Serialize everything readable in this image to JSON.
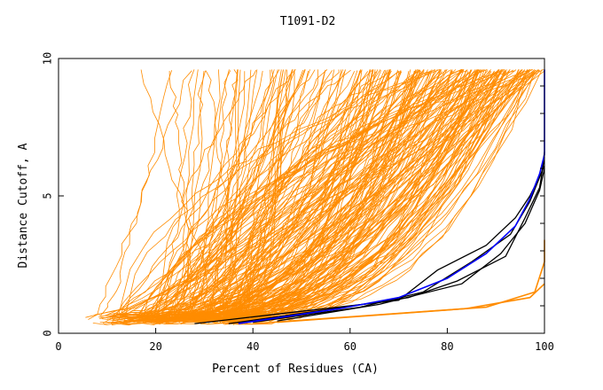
{
  "chart_data": {
    "type": "line",
    "title": "T1091-D2",
    "xlabel": "Percent of Residues (CA)",
    "ylabel": "Distance Cutoff, A",
    "xlim": [
      0,
      100
    ],
    "ylim": [
      0,
      10
    ],
    "x_ticks": [
      0,
      20,
      40,
      60,
      80,
      100
    ],
    "y_ticks": [
      0,
      5,
      10
    ],
    "grid": false,
    "legend": "none",
    "colors": {
      "orange": "#ff8c00",
      "black": "#000000",
      "blue": "#0000ff",
      "axis": "#000000"
    },
    "highlight_series": [
      {
        "color": "black",
        "points": [
          [
            28,
            0.35
          ],
          [
            50,
            0.8
          ],
          [
            70,
            1.2
          ],
          [
            78,
            2.3
          ],
          [
            88,
            3.2
          ],
          [
            94,
            4.2
          ],
          [
            97,
            5.0
          ],
          [
            99,
            5.7
          ],
          [
            100,
            6.1
          ]
        ]
      },
      {
        "color": "black",
        "points": [
          [
            35,
            0.35
          ],
          [
            55,
            0.85
          ],
          [
            72,
            1.3
          ],
          [
            82,
            1.9
          ],
          [
            92,
            2.8
          ],
          [
            96,
            4.2
          ],
          [
            99,
            5.3
          ],
          [
            100,
            6.4
          ]
        ]
      },
      {
        "color": "black",
        "points": [
          [
            40,
            0.4
          ],
          [
            62,
            0.95
          ],
          [
            75,
            1.5
          ],
          [
            85,
            2.6
          ],
          [
            93,
            3.6
          ],
          [
            97,
            4.8
          ],
          [
            99.5,
            5.9
          ],
          [
            100,
            6.6
          ]
        ]
      },
      {
        "color": "black",
        "points": [
          [
            45,
            0.45
          ],
          [
            66,
            1.05
          ],
          [
            83,
            1.8
          ],
          [
            91,
            2.9
          ],
          [
            96,
            4.0
          ],
          [
            99,
            5.2
          ],
          [
            100,
            6.0
          ]
        ]
      },
      {
        "color": "blue",
        "points": [
          [
            37,
            0.35
          ],
          [
            58,
            0.9
          ],
          [
            70,
            1.3
          ],
          [
            80,
            2.0
          ],
          [
            88,
            2.9
          ],
          [
            94,
            3.9
          ],
          [
            97,
            4.9
          ],
          [
            99,
            5.8
          ],
          [
            100,
            6.5
          ],
          [
            100,
            9.6
          ]
        ]
      }
    ]
  }
}
